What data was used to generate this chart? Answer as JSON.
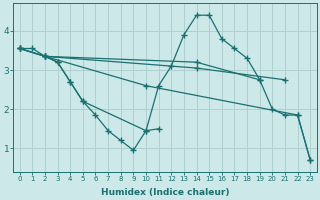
{
  "xlabel": "Humidex (Indice chaleur)",
  "ylabel": "",
  "bg_color": "#cce8e8",
  "grid_color": "#b0d0d0",
  "line_color": "#1a7070",
  "xlim": [
    -0.5,
    23.5
  ],
  "ylim": [
    0.4,
    4.7
  ],
  "yticks": [
    1,
    2,
    3,
    4
  ],
  "xticks": [
    0,
    1,
    2,
    3,
    4,
    5,
    6,
    7,
    8,
    9,
    10,
    11,
    12,
    13,
    14,
    15,
    16,
    17,
    18,
    19,
    20,
    21,
    22,
    23
  ],
  "lines": [
    {
      "x": [
        0,
        1,
        2,
        3,
        4,
        5,
        6,
        7,
        8,
        9,
        10,
        11
      ],
      "y": [
        3.55,
        3.55,
        3.35,
        3.2,
        2.7,
        2.2,
        1.85,
        1.45,
        1.2,
        0.95,
        1.45,
        1.5
      ]
    },
    {
      "x": [
        2,
        3,
        4,
        5,
        10,
        11,
        12,
        13,
        14,
        15,
        16,
        17,
        18,
        19,
        20,
        21,
        22,
        23
      ],
      "y": [
        3.35,
        3.2,
        2.7,
        2.2,
        1.45,
        2.6,
        3.1,
        3.9,
        4.4,
        4.4,
        3.8,
        3.55,
        3.3,
        2.75,
        2.0,
        1.85,
        1.85,
        0.7
      ]
    },
    {
      "x": [
        0,
        2,
        14,
        19
      ],
      "y": [
        3.55,
        3.35,
        3.2,
        2.75
      ]
    },
    {
      "x": [
        0,
        2,
        14,
        21
      ],
      "y": [
        3.55,
        3.35,
        3.05,
        2.75
      ]
    },
    {
      "x": [
        0,
        2,
        10,
        22,
        23
      ],
      "y": [
        3.55,
        3.35,
        2.6,
        1.85,
        0.7
      ]
    }
  ]
}
